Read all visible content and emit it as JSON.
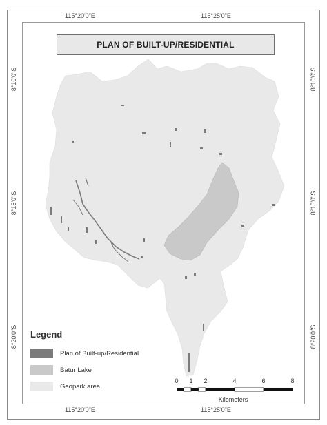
{
  "title": "PLAN OF BUILT-UP/RESIDENTIAL",
  "graticule": {
    "top": [
      "115°20'0\"E",
      "115°25'0\"E"
    ],
    "bottom": [
      "115°20'0\"E",
      "115°25'0\"E"
    ],
    "left": [
      "8°10'0\"S",
      "8°15'0\"S",
      "8°20'0\"S"
    ],
    "right": [
      "8°10'0\"S",
      "8°15'0\"S",
      "8°20'0\"S"
    ]
  },
  "legend": {
    "title": "Legend",
    "items": [
      {
        "label": "Plan of Built-up/Residential",
        "color": "#7b7b7b"
      },
      {
        "label": "Batur Lake",
        "color": "#c9c9c9"
      },
      {
        "label": "Geopark area",
        "color": "#e9e9e9"
      }
    ]
  },
  "scale": {
    "ticks": [
      "0",
      "1",
      "2",
      "4",
      "6",
      "8"
    ],
    "unit": "Kilometers"
  }
}
